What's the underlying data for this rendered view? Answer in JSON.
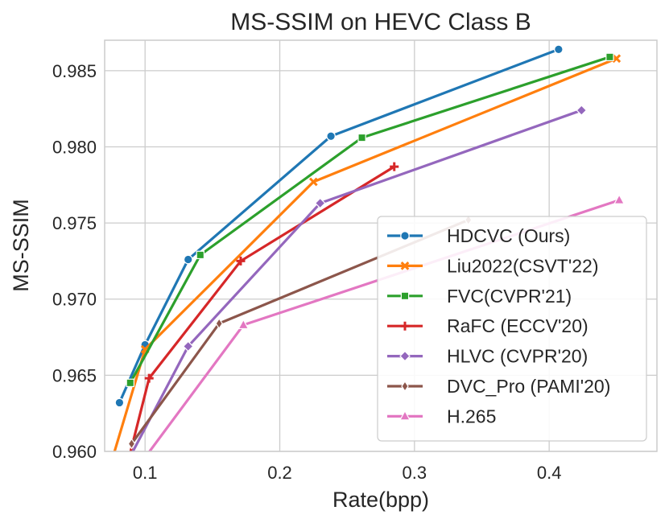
{
  "chart_data": {
    "type": "line",
    "title": "MS-SSIM on HEVC Class B",
    "xlabel": "Rate(bpp)",
    "ylabel": "MS-SSIM",
    "xlim": [
      0.07,
      0.48
    ],
    "ylim": [
      0.96,
      0.987
    ],
    "xticks": [
      0.1,
      0.2,
      0.3,
      0.4
    ],
    "xtick_labels": [
      "0.1",
      "0.2",
      "0.3",
      "0.4"
    ],
    "yticks": [
      0.96,
      0.965,
      0.97,
      0.975,
      0.98,
      0.985
    ],
    "ytick_labels": [
      "0.960",
      "0.965",
      "0.970",
      "0.975",
      "0.980",
      "0.985"
    ],
    "grid": true,
    "legend_position": "lower-right",
    "series": [
      {
        "name": "HDCVC (Ours)",
        "color": "#1f77b4",
        "marker": "circle",
        "x": [
          0.081,
          0.1,
          0.132,
          0.238,
          0.407
        ],
        "y": [
          0.9632,
          0.967,
          0.9726,
          0.9807,
          0.9864
        ]
      },
      {
        "name": "Liu2022(CSVT'22)",
        "color": "#ff7f0e",
        "marker": "x",
        "x": [
          0.075,
          0.1,
          0.225,
          0.45
        ],
        "y": [
          0.9593,
          0.9667,
          0.9777,
          0.9858
        ]
      },
      {
        "name": "FVC(CVPR'21)",
        "color": "#2ca02c",
        "marker": "square",
        "x": [
          0.089,
          0.141,
          0.261,
          0.445
        ],
        "y": [
          0.9645,
          0.9729,
          0.9806,
          0.9859
        ]
      },
      {
        "name": "RaFC (ECCV'20)",
        "color": "#d62728",
        "marker": "plus",
        "x": [
          0.085,
          0.103,
          0.171,
          0.285
        ],
        "y": [
          0.9585,
          0.9648,
          0.9725,
          0.9787
        ]
      },
      {
        "name": "HLVC (CVPR'20)",
        "color": "#9467bd",
        "marker": "diamond",
        "x": [
          0.088,
          0.132,
          0.23,
          0.424
        ],
        "y": [
          0.9595,
          0.9669,
          0.9763,
          0.9824
        ]
      },
      {
        "name": "DVC_Pro (PAMI'20)",
        "color": "#8c564b",
        "marker": "thin-diamond",
        "x": [
          0.09,
          0.155,
          0.34
        ],
        "y": [
          0.9605,
          0.9684,
          0.9752
        ]
      },
      {
        "name": "H.265",
        "color": "#e377c2",
        "marker": "triangle",
        "x": [
          0.1,
          0.173,
          0.452
        ],
        "y": [
          0.9596,
          0.9683,
          0.9765
        ]
      }
    ]
  }
}
